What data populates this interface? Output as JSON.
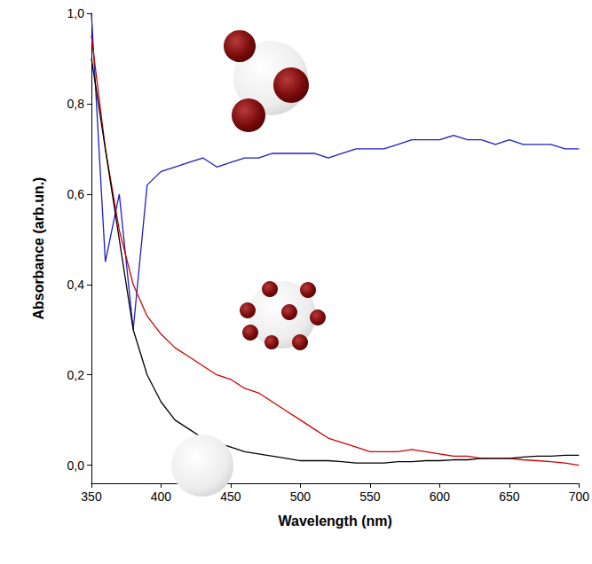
{
  "chart_data": {
    "type": "line",
    "x_label": "Wavelength (nm)",
    "y_label": "Absorbance (arb.un.)",
    "x": [
      350,
      360,
      370,
      380,
      390,
      400,
      410,
      420,
      430,
      440,
      450,
      460,
      470,
      480,
      490,
      500,
      510,
      520,
      530,
      540,
      550,
      560,
      570,
      580,
      590,
      600,
      610,
      620,
      630,
      640,
      650,
      660,
      670,
      680,
      690,
      700
    ],
    "series": [
      {
        "color": "#1c1cc8",
        "values": [
          1.0,
          0.45,
          0.6,
          0.3,
          0.62,
          0.65,
          0.66,
          0.67,
          0.68,
          0.66,
          0.67,
          0.68,
          0.68,
          0.69,
          0.69,
          0.69,
          0.69,
          0.68,
          0.69,
          0.7,
          0.7,
          0.7,
          0.71,
          0.72,
          0.72,
          0.72,
          0.73,
          0.72,
          0.72,
          0.71,
          0.72,
          0.71,
          0.71,
          0.71,
          0.7,
          0.7
        ]
      },
      {
        "color": "#d00000",
        "values": [
          0.95,
          0.7,
          0.52,
          0.4,
          0.33,
          0.29,
          0.26,
          0.24,
          0.22,
          0.2,
          0.19,
          0.17,
          0.16,
          0.14,
          0.12,
          0.1,
          0.08,
          0.06,
          0.05,
          0.04,
          0.03,
          0.03,
          0.03,
          0.035,
          0.03,
          0.025,
          0.02,
          0.02,
          0.015,
          0.015,
          0.015,
          0.012,
          0.01,
          0.008,
          0.005,
          0.0
        ]
      },
      {
        "color": "#000000",
        "values": [
          0.9,
          0.7,
          0.5,
          0.3,
          0.2,
          0.14,
          0.1,
          0.08,
          0.06,
          0.05,
          0.04,
          0.03,
          0.025,
          0.02,
          0.015,
          0.01,
          0.01,
          0.01,
          0.008,
          0.005,
          0.005,
          0.005,
          0.008,
          0.008,
          0.01,
          0.01,
          0.012,
          0.012,
          0.015,
          0.015,
          0.015,
          0.018,
          0.02,
          0.02,
          0.022,
          0.022
        ]
      }
    ],
    "xlim": [
      350,
      700
    ],
    "xticks": [
      350,
      400,
      450,
      500,
      550,
      600,
      650,
      700
    ],
    "ylim": [
      -0.04,
      1.0
    ],
    "yticks": [
      {
        "value": 0.0,
        "label": "0,0"
      },
      {
        "value": 0.2,
        "label": "0,2"
      },
      {
        "value": 0.4,
        "label": "0,4"
      },
      {
        "value": 0.6,
        "label": "0,6"
      },
      {
        "value": 0.8,
        "label": "0,8"
      },
      {
        "value": 1.0,
        "label": "1,0"
      }
    ],
    "grid": false
  }
}
